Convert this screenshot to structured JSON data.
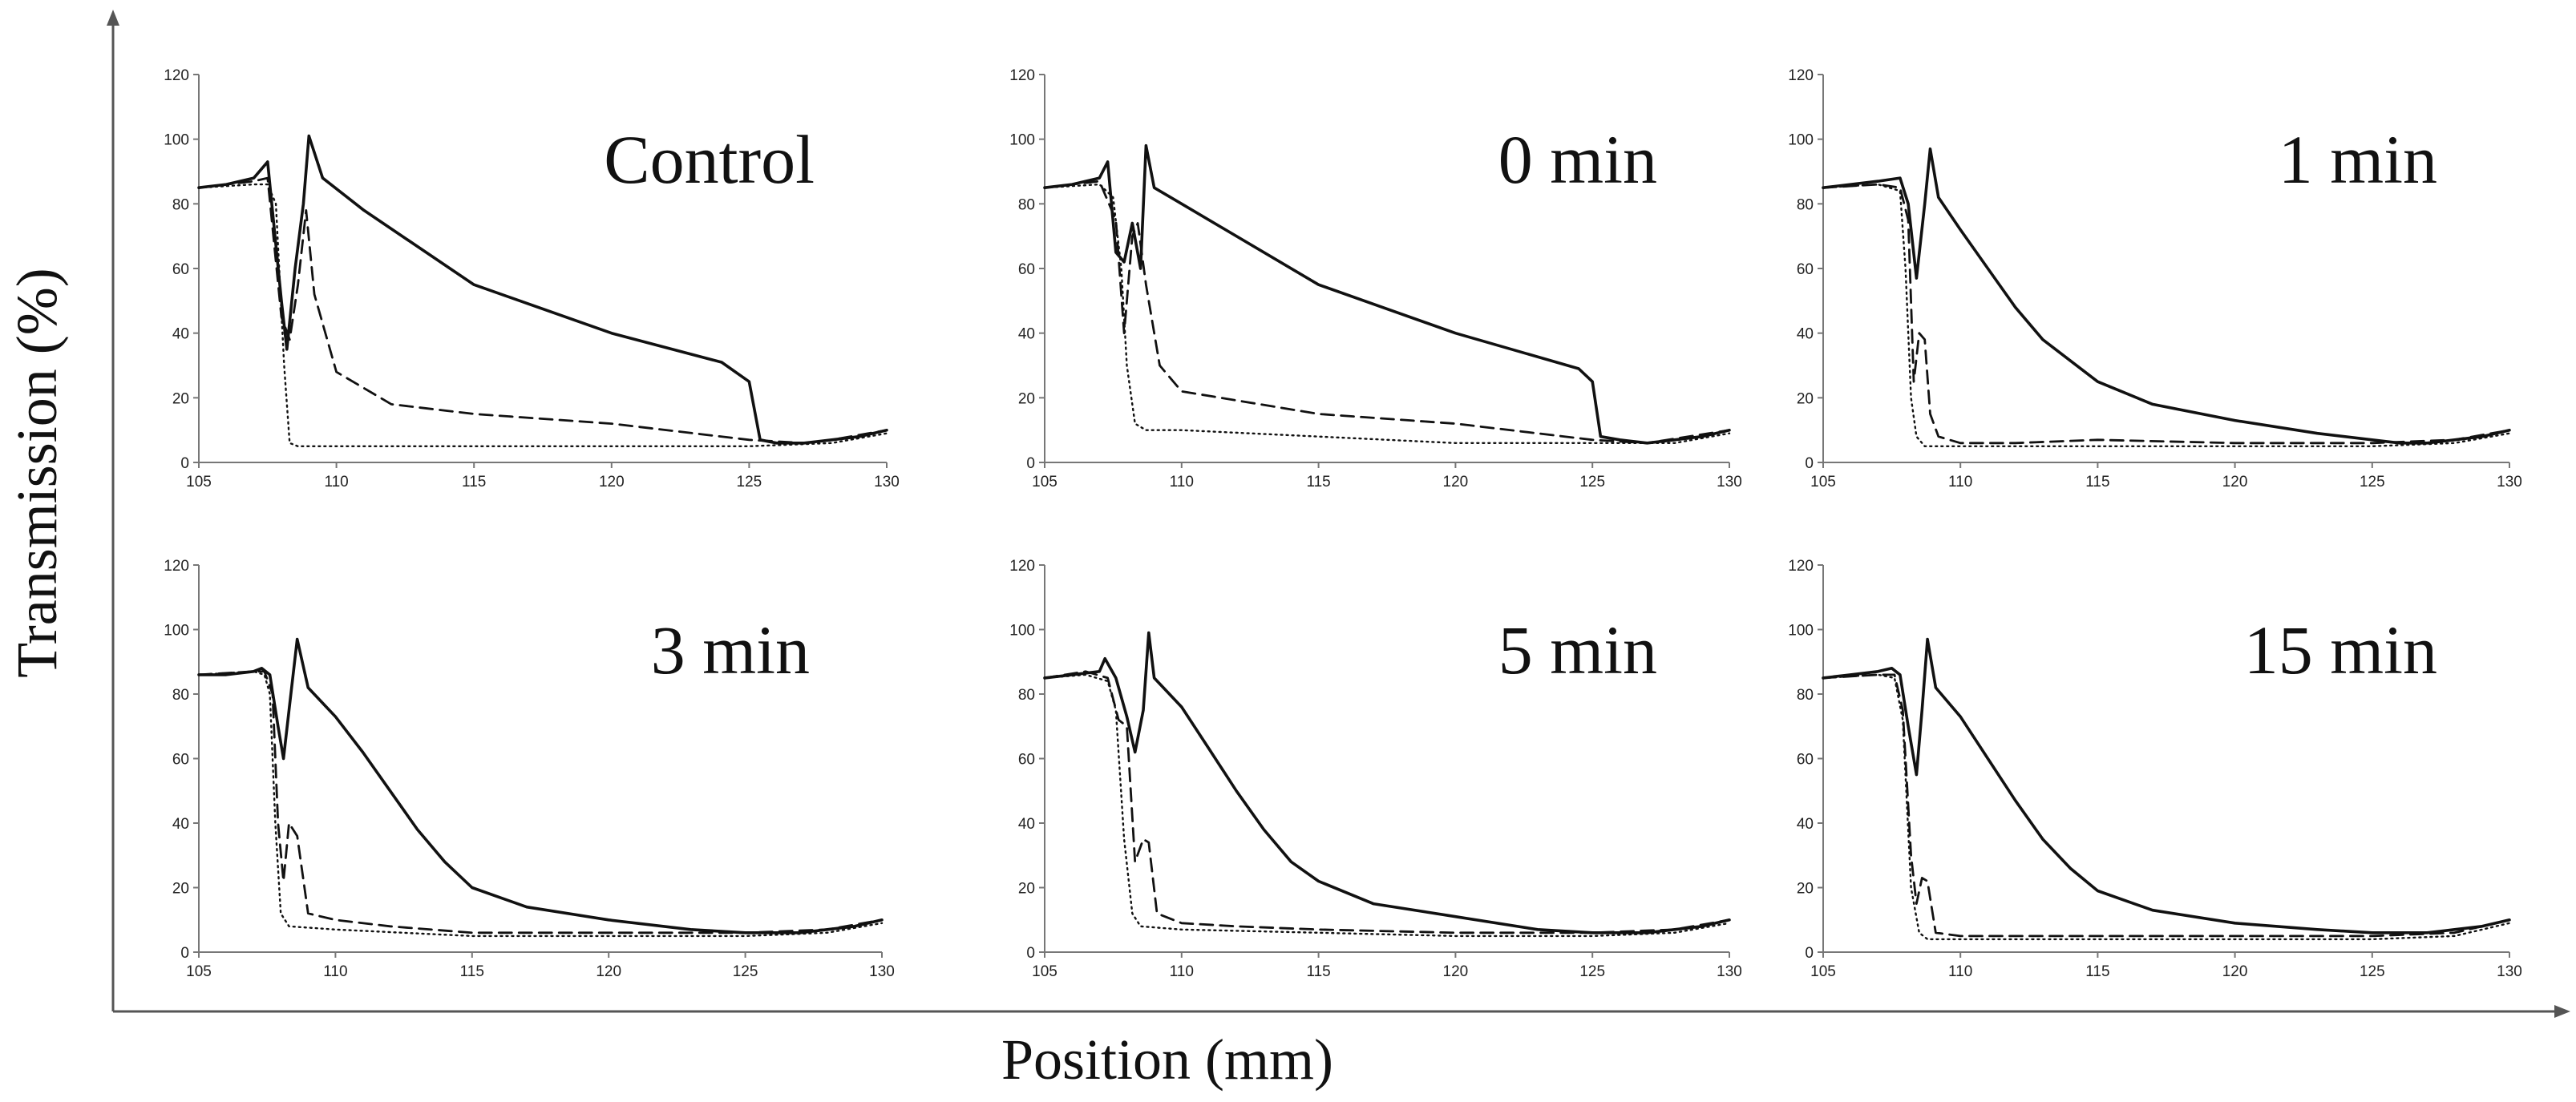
{
  "chart_data": {
    "type": "line",
    "figure_xlabel": "Position (mm)",
    "figure_ylabel": "Transmission (%)",
    "line_colors": {
      "ink": "#111111",
      "axis": "#777777"
    },
    "panels": [
      {
        "label": "Control",
        "xlim": [
          105,
          130
        ],
        "ylim": [
          0,
          120
        ],
        "xticks": [
          "105",
          "110",
          "115",
          "120",
          "125",
          "130"
        ],
        "yticks": [
          "0",
          "20",
          "40",
          "60",
          "80",
          "100",
          "120"
        ],
        "series": [
          {
            "name": "solid",
            "style": "solid",
            "x": [
              105,
              106,
              107,
              107.5,
              108,
              108.2,
              108.5,
              108.8,
              109,
              109.5,
              111,
              115,
              120,
              124,
              125,
              125.4,
              126,
              127,
              128,
              129,
              130
            ],
            "y": [
              85,
              86,
              88,
              93,
              50,
              35,
              60,
              80,
              101,
              88,
              78,
              55,
              40,
              31,
              25,
              7,
              6,
              6,
              7,
              8,
              10
            ]
          },
          {
            "name": "dashed",
            "style": "dashed",
            "x": [
              105,
              106,
              107,
              107.5,
              108,
              108.3,
              108.6,
              108.9,
              109.2,
              110,
              112,
              115,
              120,
              125,
              127,
              128,
              130
            ],
            "y": [
              85,
              86,
              87,
              88,
              45,
              38,
              55,
              78,
              52,
              28,
              18,
              15,
              12,
              7,
              6,
              7,
              10
            ]
          },
          {
            "name": "dotted",
            "style": "dotted",
            "x": [
              105,
              107,
              107.5,
              107.8,
              108.1,
              108.3,
              108.6,
              110,
              115,
              120,
              125,
              128,
              130
            ],
            "y": [
              85,
              86,
              86,
              80,
              30,
              6,
              5,
              5,
              5,
              5,
              5,
              6,
              9
            ]
          }
        ]
      },
      {
        "label": "0 min",
        "xlim": [
          105,
          130
        ],
        "ylim": [
          0,
          120
        ],
        "xticks": [
          "105",
          "110",
          "115",
          "120",
          "125",
          "130"
        ],
        "yticks": [
          "0",
          "20",
          "40",
          "60",
          "80",
          "100",
          "120"
        ],
        "series": [
          {
            "name": "solid",
            "style": "solid",
            "x": [
              105,
              106,
              107,
              107.3,
              107.6,
              107.9,
              108.2,
              108.5,
              108.7,
              109,
              110,
              115,
              120,
              124.5,
              125,
              125.3,
              126,
              127,
              128,
              129,
              130
            ],
            "y": [
              85,
              86,
              88,
              93,
              65,
              62,
              74,
              60,
              98,
              85,
              80,
              55,
              40,
              29,
              25,
              8,
              7,
              6,
              7,
              8,
              10
            ]
          },
          {
            "name": "dashed",
            "style": "dashed",
            "x": [
              105,
              107,
              107.6,
              107.9,
              108.2,
              108.4,
              108.7,
              109.2,
              110,
              115,
              120,
              125,
              127,
              130
            ],
            "y": [
              85,
              87,
              75,
              40,
              70,
              74,
              55,
              30,
              22,
              15,
              12,
              7,
              6,
              10
            ]
          },
          {
            "name": "dotted",
            "style": "dotted",
            "x": [
              105,
              107,
              107.5,
              107.8,
              108,
              108.3,
              108.7,
              110,
              115,
              120,
              125,
              128,
              130
            ],
            "y": [
              85,
              86,
              82,
              60,
              30,
              12,
              10,
              10,
              8,
              6,
              6,
              6,
              9
            ]
          }
        ]
      },
      {
        "label": "1 min",
        "xlim": [
          105,
          130
        ],
        "ylim": [
          0,
          120
        ],
        "xticks": [
          "105",
          "110",
          "115",
          "120",
          "125",
          "130"
        ],
        "yticks": [
          "0",
          "20",
          "40",
          "60",
          "80",
          "100",
          "120"
        ],
        "series": [
          {
            "name": "solid",
            "style": "solid",
            "x": [
              105,
              106,
              107,
              107.8,
              108.1,
              108.4,
              108.7,
              108.9,
              109.2,
              110,
              111,
              112,
              113,
              115,
              117,
              120,
              123,
              125,
              126,
              127,
              128,
              129,
              130
            ],
            "y": [
              85,
              86,
              87,
              88,
              80,
              57,
              80,
              97,
              82,
              72,
              60,
              48,
              38,
              25,
              18,
              13,
              9,
              7,
              6,
              6,
              7,
              8,
              10
            ]
          },
          {
            "name": "dashed",
            "style": "dashed",
            "x": [
              105,
              107,
              107.8,
              108.1,
              108.3,
              108.5,
              108.7,
              108.9,
              109.2,
              110,
              112,
              115,
              120,
              125,
              128,
              130
            ],
            "y": [
              85,
              86,
              85,
              75,
              25,
              40,
              38,
              15,
              8,
              6,
              6,
              7,
              6,
              6,
              7,
              10
            ]
          },
          {
            "name": "dotted",
            "style": "dotted",
            "x": [
              105,
              107,
              107.8,
              108,
              108.2,
              108.4,
              108.7,
              110,
              115,
              120,
              125,
              128,
              130
            ],
            "y": [
              85,
              86,
              84,
              60,
              20,
              8,
              5,
              5,
              5,
              5,
              5,
              6,
              9
            ]
          }
        ]
      },
      {
        "label": "3 min",
        "xlim": [
          105,
          130
        ],
        "ylim": [
          0,
          120
        ],
        "xticks": [
          "105",
          "110",
          "115",
          "120",
          "125",
          "130"
        ],
        "yticks": [
          "0",
          "20",
          "40",
          "60",
          "80",
          "100",
          "120"
        ],
        "series": [
          {
            "name": "solid",
            "style": "solid",
            "x": [
              105,
              106,
              107,
              107.3,
              107.6,
              107.9,
              108.1,
              108.3,
              108.6,
              109,
              110,
              111,
              112,
              113,
              114,
              115,
              117,
              120,
              123,
              125,
              126,
              127,
              128,
              129,
              130
            ],
            "y": [
              86,
              86,
              87,
              88,
              86,
              70,
              60,
              75,
              97,
              82,
              73,
              62,
              50,
              38,
              28,
              20,
              14,
              10,
              7,
              6,
              6,
              6,
              7,
              8,
              10
            ]
          },
          {
            "name": "dashed",
            "style": "dashed",
            "x": [
              105,
              107,
              107.4,
              107.7,
              107.9,
              108.1,
              108.3,
              108.6,
              109,
              110,
              112,
              115,
              120,
              125,
              128,
              130
            ],
            "y": [
              86,
              87,
              87,
              80,
              40,
              22,
              40,
              36,
              12,
              10,
              8,
              6,
              6,
              6,
              7,
              10
            ]
          },
          {
            "name": "dotted",
            "style": "dotted",
            "x": [
              105,
              107,
              107.4,
              107.6,
              107.8,
              108,
              108.3,
              110,
              115,
              120,
              125,
              128,
              130
            ],
            "y": [
              86,
              87,
              86,
              80,
              40,
              12,
              8,
              7,
              5,
              5,
              5,
              6,
              9
            ]
          }
        ]
      },
      {
        "label": "5 min",
        "xlim": [
          105,
          130
        ],
        "ylim": [
          0,
          120
        ],
        "xticks": [
          "105",
          "110",
          "115",
          "120",
          "125",
          "130"
        ],
        "yticks": [
          "0",
          "20",
          "40",
          "60",
          "80",
          "100",
          "120"
        ],
        "series": [
          {
            "name": "solid",
            "style": "solid",
            "x": [
              105,
              106,
              107,
              107.2,
              107.6,
              108,
              108.3,
              108.6,
              108.8,
              109,
              110,
              111,
              112,
              113,
              114,
              115,
              117,
              120,
              123,
              125,
              126,
              127,
              128,
              129,
              130
            ],
            "y": [
              85,
              86,
              87,
              91,
              85,
              73,
              62,
              75,
              99,
              85,
              76,
              63,
              50,
              38,
              28,
              22,
              15,
              11,
              7,
              6,
              6,
              6,
              7,
              8,
              10
            ]
          },
          {
            "name": "dashed",
            "style": "dashed",
            "x": [
              105,
              106.5,
              107.3,
              107.7,
              108,
              108.3,
              108.6,
              108.8,
              109.1,
              110,
              112,
              115,
              120,
              125,
              128,
              130
            ],
            "y": [
              85,
              87,
              85,
              72,
              70,
              28,
              35,
              34,
              12,
              9,
              8,
              7,
              6,
              6,
              7,
              10
            ]
          },
          {
            "name": "dotted",
            "style": "dotted",
            "x": [
              105,
              106.5,
              107.3,
              107.6,
              107.9,
              108.2,
              108.5,
              110,
              115,
              120,
              125,
              128,
              130
            ],
            "y": [
              85,
              86,
              84,
              75,
              35,
              12,
              8,
              7,
              6,
              5,
              5,
              6,
              9
            ]
          }
        ]
      },
      {
        "label": "15 min",
        "xlim": [
          105,
          130
        ],
        "ylim": [
          0,
          120
        ],
        "xticks": [
          "105",
          "110",
          "115",
          "120",
          "125",
          "130"
        ],
        "yticks": [
          "0",
          "20",
          "40",
          "60",
          "80",
          "100",
          "120"
        ],
        "series": [
          {
            "name": "solid",
            "style": "solid",
            "x": [
              105,
              106,
              107,
              107.5,
              107.8,
              108.1,
              108.4,
              108.6,
              108.8,
              109.1,
              110,
              111,
              112,
              113,
              114,
              115,
              117,
              120,
              123,
              125,
              126,
              127,
              128,
              129,
              130
            ],
            "y": [
              85,
              86,
              87,
              88,
              86,
              70,
              55,
              75,
              97,
              82,
              73,
              60,
              47,
              35,
              26,
              19,
              13,
              9,
              7,
              6,
              6,
              6,
              7,
              8,
              10
            ]
          },
          {
            "name": "dashed",
            "style": "dashed",
            "x": [
              105,
              107,
              107.6,
              107.9,
              108.2,
              108.4,
              108.6,
              108.8,
              109.1,
              110,
              112,
              115,
              120,
              125,
              128,
              130
            ],
            "y": [
              85,
              86,
              86,
              75,
              30,
              15,
              23,
              22,
              6,
              5,
              5,
              5,
              5,
              5,
              6,
              10
            ]
          },
          {
            "name": "dotted",
            "style": "dotted",
            "x": [
              105,
              107,
              107.6,
              107.9,
              108.2,
              108.5,
              108.8,
              110,
              115,
              120,
              125,
              128,
              130
            ],
            "y": [
              85,
              86,
              85,
              72,
              20,
              6,
              4,
              4,
              4,
              4,
              4,
              5,
              9
            ]
          }
        ]
      }
    ]
  }
}
